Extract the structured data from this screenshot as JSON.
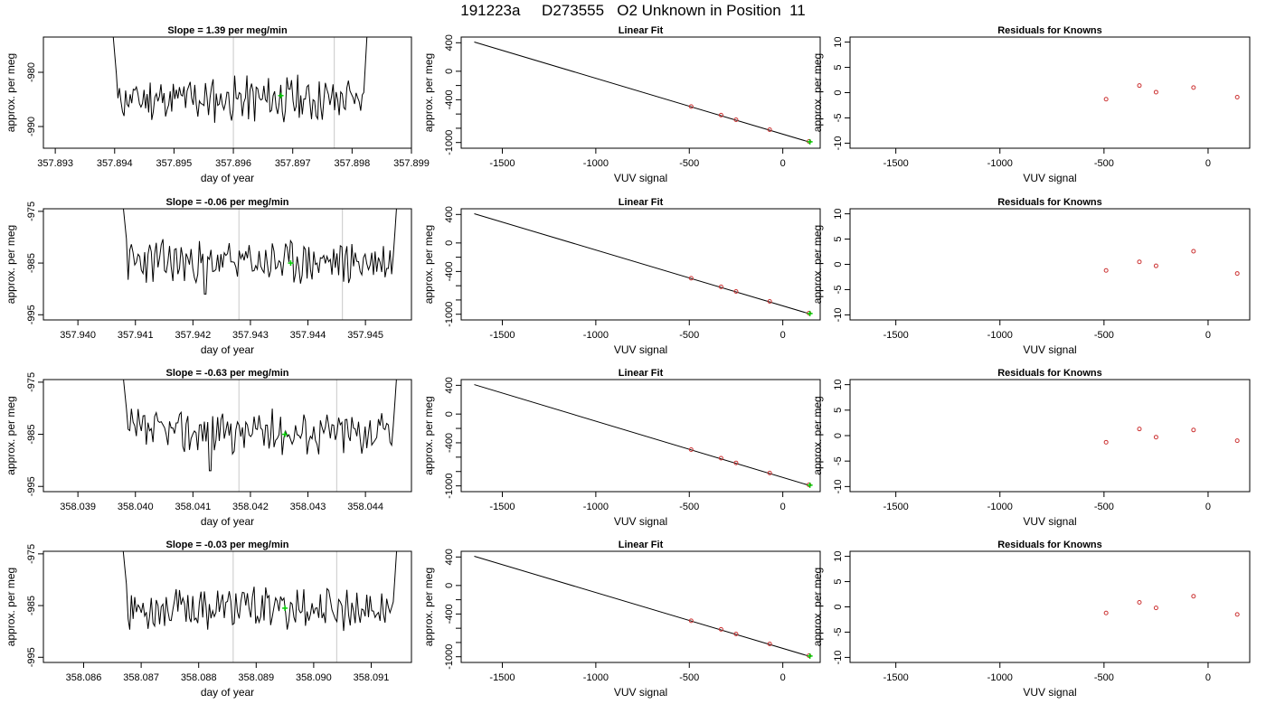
{
  "page": {
    "title": "191223a     D273555   O2 Unknown in Position  11"
  },
  "chart_data": [
    {
      "row": 0,
      "col": 0,
      "type": "line",
      "title": "Slope =  1.39  per meg/min",
      "xlabel": "day of year",
      "ylabel": "approx. per meg",
      "xlim": [
        357.8928,
        357.899
      ],
      "ylim": [
        -994,
        -973.5
      ],
      "xticks": [
        "357.893",
        "357.894",
        "357.895",
        "357.896",
        "357.897",
        "357.898",
        "357.899"
      ],
      "yticks": [
        "-980",
        "-990"
      ],
      "vlines": [
        357.896,
        357.8977
      ],
      "start": 357.8939,
      "end": 357.8983,
      "baseline": -985,
      "dip": null,
      "marker": {
        "x": 357.8968,
        "y": -984.3,
        "color": "#00cc00"
      },
      "seed": 11
    },
    {
      "row": 0,
      "col": 1,
      "type": "scatter",
      "title": "Linear Fit",
      "xlabel": "VUV signal",
      "ylabel": "approx. per meg",
      "xlim": [
        -1720,
        200
      ],
      "ylim": [
        -1080,
        480
      ],
      "xticks": [
        "-1500",
        "-1000",
        "-500",
        "0"
      ],
      "yticks": [
        "400",
        "0",
        "-400",
        "-1000"
      ],
      "line": [
        [
          -1650,
          410
        ],
        [
          150,
          -1000
        ]
      ],
      "points": [
        {
          "x": -490,
          "y": -495
        },
        {
          "x": -330,
          "y": -615
        },
        {
          "x": -250,
          "y": -680
        },
        {
          "x": -70,
          "y": -820
        },
        {
          "x": 140,
          "y": -985
        }
      ],
      "marker": {
        "x": 145,
        "y": -990,
        "color": "#00cc00"
      }
    },
    {
      "row": 0,
      "col": 2,
      "type": "scatter",
      "title": "Residuals for Knowns",
      "xlabel": "VUV signal",
      "ylabel": "approx. per meg",
      "xlim": [
        -1720,
        200
      ],
      "ylim": [
        -11,
        11
      ],
      "xticks": [
        "-1500",
        "-1000",
        "-500",
        "0"
      ],
      "yticks": [
        "10",
        "5",
        "0",
        "-5",
        "-10"
      ],
      "points": [
        {
          "x": -490,
          "y": -1.3
        },
        {
          "x": -330,
          "y": 1.4
        },
        {
          "x": -250,
          "y": 0.1
        },
        {
          "x": -70,
          "y": 1.0
        },
        {
          "x": 140,
          "y": -0.9
        }
      ]
    },
    {
      "row": 1,
      "col": 0,
      "type": "line",
      "title": "Slope =  -0.06  per meg/min",
      "xlabel": "day of year",
      "ylabel": "approx. per meg",
      "xlim": [
        357.9394,
        357.9458
      ],
      "ylim": [
        -996,
        -974.5
      ],
      "xticks": [
        "357.940",
        "357.941",
        "357.942",
        "357.943",
        "357.944",
        "357.945"
      ],
      "yticks": [
        "-975",
        "-985",
        "-995"
      ],
      "vlines": [
        357.9428,
        357.9446
      ],
      "start": 357.9407,
      "end": 357.9456,
      "baseline": -984.8,
      "dip": {
        "x": 357.9422,
        "y": -991
      },
      "marker": {
        "x": 357.9437,
        "y": -985,
        "color": "#00cc00"
      },
      "seed": 23
    },
    {
      "row": 1,
      "col": 1,
      "type": "scatter",
      "title": "Linear Fit",
      "xlabel": "VUV signal",
      "ylabel": "approx. per meg",
      "xlim": [
        -1720,
        200
      ],
      "ylim": [
        -1080,
        480
      ],
      "xticks": [
        "-1500",
        "-1000",
        "-500",
        "0"
      ],
      "yticks": [
        "400",
        "0",
        "-400",
        "-1000"
      ],
      "line": [
        [
          -1650,
          410
        ],
        [
          150,
          -1000
        ]
      ],
      "points": [
        {
          "x": -490,
          "y": -495
        },
        {
          "x": -330,
          "y": -615
        },
        {
          "x": -250,
          "y": -680
        },
        {
          "x": -70,
          "y": -820
        },
        {
          "x": 140,
          "y": -985
        }
      ],
      "marker": {
        "x": 145,
        "y": -990,
        "color": "#00cc00"
      }
    },
    {
      "row": 1,
      "col": 2,
      "type": "scatter",
      "title": "Residuals for Knowns",
      "xlabel": "VUV signal",
      "ylabel": "approx. per meg",
      "xlim": [
        -1720,
        200
      ],
      "ylim": [
        -11,
        11
      ],
      "xticks": [
        "-1500",
        "-1000",
        "-500",
        "0"
      ],
      "yticks": [
        "10",
        "5",
        "0",
        "-5",
        "-10"
      ],
      "points": [
        {
          "x": -490,
          "y": -1.2
        },
        {
          "x": -330,
          "y": 0.5
        },
        {
          "x": -250,
          "y": -0.3
        },
        {
          "x": -70,
          "y": 2.6
        },
        {
          "x": 140,
          "y": -1.8
        }
      ]
    },
    {
      "row": 2,
      "col": 0,
      "type": "line",
      "title": "Slope =  -0.63  per meg/min",
      "xlabel": "day of year",
      "ylabel": "approx. per meg",
      "xlim": [
        358.0384,
        358.0448
      ],
      "ylim": [
        -996,
        -974.5
      ],
      "xticks": [
        "358.039",
        "358.040",
        "358.041",
        "358.042",
        "358.043",
        "358.044"
      ],
      "yticks": [
        "-975",
        "-985",
        "-995"
      ],
      "vlines": [
        358.0418,
        358.0435
      ],
      "start": 358.0397,
      "end": 358.0446,
      "baseline": -984.5,
      "dip": {
        "x": 358.0413,
        "y": -992
      },
      "marker": {
        "x": 358.0426,
        "y": -985,
        "color": "#00cc00"
      },
      "seed": 37
    },
    {
      "row": 2,
      "col": 1,
      "type": "scatter",
      "title": "Linear Fit",
      "xlabel": "VUV signal",
      "ylabel": "approx. per meg",
      "xlim": [
        -1720,
        200
      ],
      "ylim": [
        -1080,
        480
      ],
      "xticks": [
        "-1500",
        "-1000",
        "-500",
        "0"
      ],
      "yticks": [
        "400",
        "0",
        "-400",
        "-1000"
      ],
      "line": [
        [
          -1650,
          410
        ],
        [
          150,
          -1000
        ]
      ],
      "points": [
        {
          "x": -490,
          "y": -495
        },
        {
          "x": -330,
          "y": -615
        },
        {
          "x": -250,
          "y": -680
        },
        {
          "x": -70,
          "y": -820
        },
        {
          "x": 140,
          "y": -985
        }
      ],
      "marker": {
        "x": 145,
        "y": -990,
        "color": "#00cc00"
      }
    },
    {
      "row": 2,
      "col": 2,
      "type": "scatter",
      "title": "Residuals for Knowns",
      "xlabel": "VUV signal",
      "ylabel": "approx. per meg",
      "xlim": [
        -1720,
        200
      ],
      "ylim": [
        -11,
        11
      ],
      "xticks": [
        "-1500",
        "-1000",
        "-500",
        "0"
      ],
      "yticks": [
        "10",
        "5",
        "0",
        "-5",
        "-10"
      ],
      "points": [
        {
          "x": -490,
          "y": -1.3
        },
        {
          "x": -330,
          "y": 1.3
        },
        {
          "x": -250,
          "y": -0.3
        },
        {
          "x": -70,
          "y": 1.1
        },
        {
          "x": 140,
          "y": -1.0
        }
      ]
    },
    {
      "row": 3,
      "col": 0,
      "type": "line",
      "title": "Slope =  -0.03  per meg/min",
      "xlabel": "day of year",
      "ylabel": "approx. per meg",
      "xlim": [
        358.0853,
        358.0917
      ],
      "ylim": [
        -996,
        -974.5
      ],
      "xticks": [
        "358.086",
        "358.087",
        "358.088",
        "358.089",
        "358.090",
        "358.091"
      ],
      "yticks": [
        "-975",
        "-985",
        "-995"
      ],
      "vlines": [
        358.0886,
        358.0904
      ],
      "start": 358.0866,
      "end": 358.0915,
      "baseline": -985.5,
      "dip": null,
      "marker": {
        "x": 358.0895,
        "y": -985.5,
        "color": "#00cc00"
      },
      "seed": 53
    },
    {
      "row": 3,
      "col": 1,
      "type": "scatter",
      "title": "Linear Fit",
      "xlabel": "VUV signal",
      "ylabel": "approx. per meg",
      "xlim": [
        -1720,
        200
      ],
      "ylim": [
        -1080,
        480
      ],
      "xticks": [
        "-1500",
        "-1000",
        "-500",
        "0"
      ],
      "yticks": [
        "400",
        "0",
        "-400",
        "-1000"
      ],
      "line": [
        [
          -1650,
          410
        ],
        [
          150,
          -1000
        ]
      ],
      "points": [
        {
          "x": -490,
          "y": -495
        },
        {
          "x": -330,
          "y": -615
        },
        {
          "x": -250,
          "y": -680
        },
        {
          "x": -70,
          "y": -820
        },
        {
          "x": 140,
          "y": -985
        }
      ],
      "marker": {
        "x": 145,
        "y": -990,
        "color": "#00cc00"
      }
    },
    {
      "row": 3,
      "col": 2,
      "type": "scatter",
      "title": "Residuals for Knowns",
      "xlabel": "VUV signal",
      "ylabel": "approx. per meg",
      "xlim": [
        -1720,
        200
      ],
      "ylim": [
        -11,
        11
      ],
      "xticks": [
        "-1500",
        "-1000",
        "-500",
        "0"
      ],
      "yticks": [
        "10",
        "5",
        "0",
        "-5",
        "-10"
      ],
      "points": [
        {
          "x": -490,
          "y": -1.2
        },
        {
          "x": -330,
          "y": 0.9
        },
        {
          "x": -250,
          "y": -0.2
        },
        {
          "x": -70,
          "y": 2.1
        },
        {
          "x": 140,
          "y": -1.5
        }
      ]
    }
  ],
  "colors": {
    "trace": "#000000",
    "vline": "#c8c8c8",
    "point": "#cc3333",
    "marker": "#00cc00"
  }
}
